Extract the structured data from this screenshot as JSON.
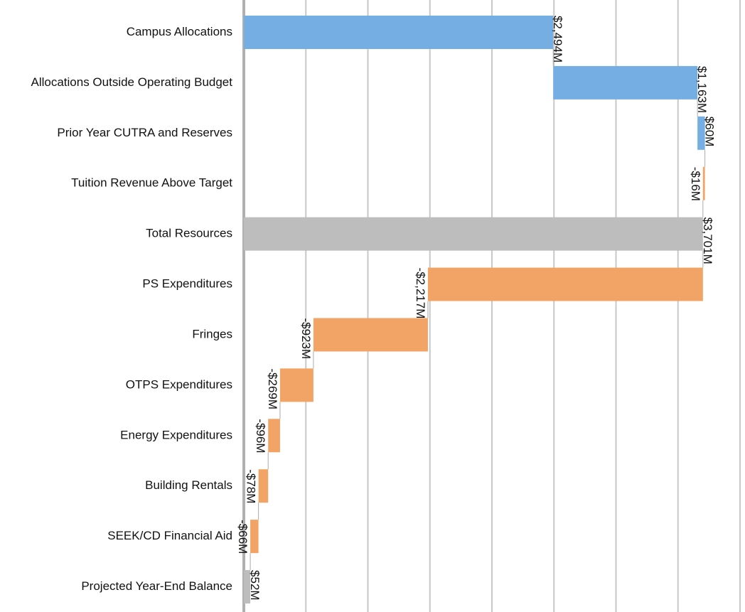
{
  "chart_data": {
    "type": "waterfall",
    "orientation": "horizontal",
    "categories": [
      "Campus Allocations",
      "Allocations Outside Operating Budget",
      "Prior Year CUTRA and Reserves",
      "Tuition Revenue Above Target",
      "Total Resources",
      "PS Expenditures",
      "Fringes",
      "OTPS Expenditures",
      "Energy Expenditures",
      "Building Rentals",
      "SEEK/CD Financial Aid",
      "Projected Year-End Balance"
    ],
    "values": [
      2494,
      1163,
      60,
      -16,
      3701,
      -2217,
      -923,
      -269,
      -96,
      -78,
      -66,
      52
    ],
    "value_labels": [
      "$2,494M",
      "$1,163M",
      "$60M",
      "-$16M",
      "$3,701M",
      "-$2,217M",
      "-$923M",
      "-$269M",
      "-$96M",
      "-$78M",
      "-$66M",
      "$52M"
    ],
    "totals": [
      false,
      false,
      false,
      false,
      true,
      false,
      false,
      false,
      false,
      false,
      false,
      true
    ],
    "colors": {
      "increase": "#74aee3",
      "decrease": "#f2a466",
      "total": "#bdbdbd"
    },
    "xlim": [
      0,
      4000
    ],
    "xticks": [
      0,
      500,
      1000,
      1500,
      2000,
      2500,
      3000,
      3500,
      4000
    ],
    "grid": true
  }
}
